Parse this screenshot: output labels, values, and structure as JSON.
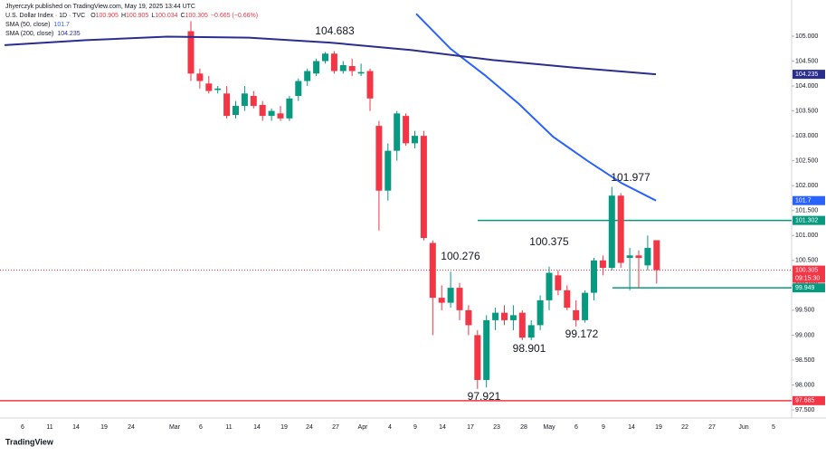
{
  "chart_data": {
    "type": "candlestick",
    "publisher": "Jhyerczyk published on TradingView.com, May 19, 2025 13:44 UTC",
    "symbol": "U.S. Dollar Index · 1D · TVC",
    "ohlc_labels": [
      "O",
      "H",
      "L",
      "C"
    ],
    "change": "−0.665 (−0.66%)",
    "up_color": "#089981",
    "down_color": "#f23645",
    "candles": {
      "open": [
        105.1,
        104.25,
        104.05,
        103.92,
        103.85,
        103.42,
        103.6,
        103.8,
        103.62,
        103.4,
        103.45,
        103.35,
        103.8,
        104.1,
        104.25,
        104.5,
        104.65,
        104.3,
        104.4,
        104.25,
        104.3,
        103.2,
        101.9,
        102.7,
        103.4,
        102.85,
        103.0,
        100.85,
        99.75,
        99.65,
        99.95,
        99.5,
        99.0,
        98.1,
        99.3,
        99.45,
        99.3,
        99.45,
        98.95,
        99.2,
        99.7,
        100.2,
        99.9,
        99.5,
        99.3,
        99.85,
        100.5,
        100.35,
        101.8,
        100.55,
        100.6,
        100.4,
        100.905
      ],
      "high": [
        105.3,
        104.35,
        104.2,
        104.0,
        104.0,
        103.7,
        104.0,
        103.9,
        103.7,
        103.55,
        103.6,
        103.8,
        104.15,
        104.35,
        104.55,
        104.683,
        104.7,
        104.5,
        104.55,
        104.45,
        104.35,
        103.3,
        102.85,
        103.5,
        103.45,
        103.1,
        103.1,
        100.9,
        100.0,
        100.276,
        100.05,
        99.6,
        99.1,
        99.4,
        99.55,
        99.6,
        99.6,
        99.5,
        99.3,
        99.8,
        100.375,
        100.3,
        100.0,
        99.7,
        99.9,
        100.55,
        100.6,
        101.977,
        101.85,
        100.75,
        100.7,
        101.0,
        100.905
      ],
      "low": [
        104.1,
        103.95,
        103.85,
        103.85,
        103.35,
        103.35,
        103.5,
        103.55,
        103.3,
        103.3,
        103.3,
        103.3,
        103.7,
        104.0,
        104.2,
        104.45,
        104.25,
        104.25,
        104.2,
        104.2,
        103.5,
        101.1,
        101.7,
        102.5,
        102.8,
        102.75,
        100.9,
        99.0,
        99.5,
        99.55,
        99.3,
        99.0,
        97.921,
        97.95,
        99.1,
        99.2,
        99.1,
        98.901,
        98.9,
        99.1,
        99.5,
        99.8,
        99.5,
        99.172,
        99.25,
        99.7,
        100.2,
        100.3,
        100.35,
        99.9,
        99.95,
        100.3,
        100.034
      ],
      "close": [
        104.25,
        104.1,
        103.9,
        103.95,
        103.4,
        103.6,
        103.85,
        103.6,
        103.4,
        103.5,
        103.35,
        103.75,
        104.1,
        104.3,
        104.5,
        104.65,
        104.3,
        104.42,
        104.3,
        104.28,
        103.75,
        101.9,
        102.7,
        103.45,
        102.85,
        103.0,
        100.95,
        99.75,
        99.65,
        99.95,
        99.5,
        99.2,
        98.1,
        99.3,
        99.45,
        99.3,
        99.4,
        98.95,
        99.2,
        99.7,
        100.25,
        99.9,
        99.55,
        99.3,
        99.85,
        100.5,
        100.35,
        101.8,
        100.45,
        100.6,
        100.55,
        100.75,
        100.305
      ]
    },
    "sma": [
      {
        "name": "SMA (50, close)",
        "color": "#2962ff",
        "values": [
          105.45,
          104.75,
          104.22,
          103.64,
          102.98,
          102.5,
          102.05,
          101.7
        ]
      },
      {
        "name": "SMA (200, close)",
        "color": "#2a2e8f",
        "values": [
          104.82,
          104.92,
          104.99,
          104.97,
          104.87,
          104.72,
          104.52,
          104.37,
          104.235
        ]
      }
    ],
    "levels": [
      {
        "value": 101.302,
        "color": "#089981"
      },
      {
        "value": 99.949,
        "color": "#089981"
      },
      {
        "value": 97.685,
        "color": "#f23645"
      }
    ],
    "countdown": "09:15:30",
    "ylim": [
      97.337,
      105.726
    ],
    "yticks": [
      {
        "value": 97.5,
        "label": "97.500"
      },
      {
        "value": 98,
        "label": "98.000"
      },
      {
        "value": 98.5,
        "label": "98.500"
      },
      {
        "value": 99,
        "label": "99.000"
      },
      {
        "value": 99.5,
        "label": "99.500"
      },
      {
        "value": 100,
        "label": "100.000"
      },
      {
        "value": 100.5,
        "label": "100.500"
      },
      {
        "value": 101,
        "label": "101.000"
      },
      {
        "value": 101.5,
        "label": "101.500"
      },
      {
        "value": 102,
        "label": "102.000"
      },
      {
        "value": 102.5,
        "label": "102.500"
      },
      {
        "value": 103,
        "label": "103.000"
      },
      {
        "value": 103.5,
        "label": "103.500"
      },
      {
        "value": 104,
        "label": "104.000"
      },
      {
        "value": 104.5,
        "label": "104.500"
      },
      {
        "value": 105,
        "label": "105.000"
      }
    ],
    "xtick_labels": [
      "6",
      "11",
      "14",
      "19",
      "24",
      "Mar",
      "6",
      "11",
      "14",
      "19",
      "24",
      "27",
      "Apr",
      "4",
      "9",
      "14",
      "17",
      "23",
      "28",
      "May",
      "6",
      "9",
      "14",
      "19",
      "22",
      "27",
      "Jun",
      "5"
    ],
    "footer": "TradingView"
  }
}
